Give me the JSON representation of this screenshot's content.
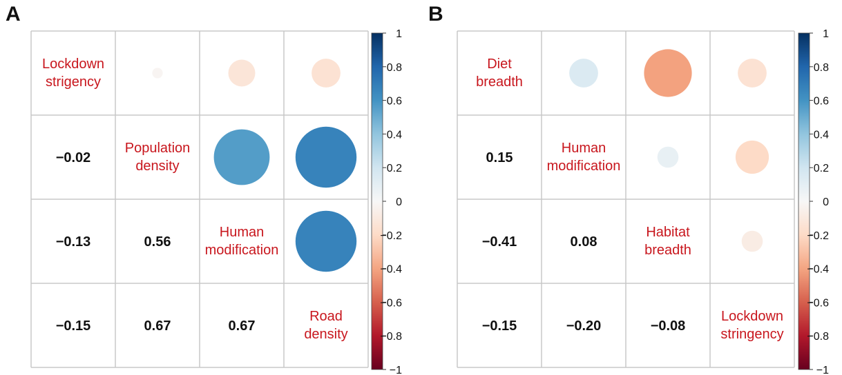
{
  "chart_data": [
    {
      "type": "heatmap",
      "panel": "A",
      "variables": [
        [
          "Lockdown",
          "strigency"
        ],
        [
          "Population",
          "density"
        ],
        [
          "Human",
          "modification"
        ],
        [
          "Road",
          "density"
        ]
      ],
      "lower_labels": [
        [],
        [
          "−0.02"
        ],
        [
          "−0.13",
          "0.56"
        ],
        [
          "−0.15",
          "0.67",
          "0.67"
        ]
      ],
      "matrix": [
        [
          1,
          -0.02,
          -0.13,
          -0.15
        ],
        [
          -0.02,
          1,
          0.56,
          0.67
        ],
        [
          -0.13,
          0.56,
          1,
          0.67
        ],
        [
          -0.15,
          0.67,
          0.67,
          1
        ]
      ],
      "colorbar": {
        "min": -1,
        "max": 1,
        "ticks": [
          "1",
          "0.8",
          "0.6",
          "0.4",
          "0.2",
          "0",
          "−0.2",
          "−0.4",
          "−0.6",
          "−0.8",
          "−1"
        ]
      }
    },
    {
      "type": "heatmap",
      "panel": "B",
      "variables": [
        [
          "Diet",
          "breadth"
        ],
        [
          "Human",
          "modification"
        ],
        [
          "Habitat",
          "breadth"
        ],
        [
          "Lockdown",
          "stringency"
        ]
      ],
      "lower_labels": [
        [],
        [
          "0.15"
        ],
        [
          "−0.41",
          "0.08"
        ],
        [
          "−0.15",
          "−0.20",
          "−0.08"
        ]
      ],
      "matrix": [
        [
          1,
          0.15,
          -0.41,
          -0.15
        ],
        [
          0.15,
          1,
          0.08,
          -0.2
        ],
        [
          -0.41,
          0.08,
          1,
          -0.08
        ],
        [
          -0.15,
          -0.2,
          -0.08,
          1
        ]
      ],
      "colorbar": {
        "min": -1,
        "max": 1,
        "ticks": [
          "1",
          "0.8",
          "0.6",
          "0.4",
          "0.2",
          "0",
          "−0.2",
          "−0.4",
          "−0.6",
          "−0.8",
          "−1"
        ]
      }
    }
  ],
  "colors": {
    "stops": [
      "#67001f",
      "#b2182b",
      "#d6604d",
      "#f4a582",
      "#fddbc7",
      "#f7f7f7",
      "#d1e5f0",
      "#92c5de",
      "#4393c3",
      "#2166ac",
      "#053061"
    ],
    "label": "#c8161d",
    "grid": "#c8c8c8"
  }
}
